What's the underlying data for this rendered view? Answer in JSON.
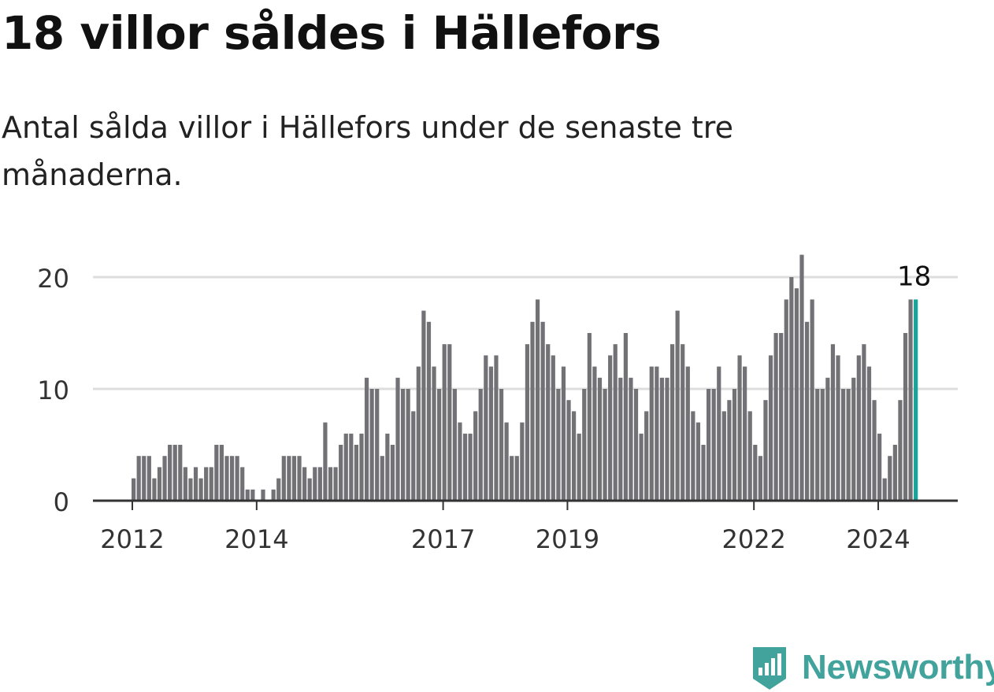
{
  "title": "18 villor såldes i Hällefors",
  "subtitle": "Antal sålda villor i Hällefors under de senaste tre månaderna.",
  "brand": {
    "name": "Newsworthy",
    "color": "#41a39b",
    "icon": "newsworthy-logo-icon"
  },
  "colors": {
    "bar": "#727176",
    "highlight": "#17a398",
    "grid": "#dddddd",
    "axis": "#333333"
  },
  "chart_data": {
    "type": "bar",
    "title": "",
    "xlabel": "",
    "ylabel": "",
    "ylim": [
      0,
      22
    ],
    "yticks": [
      0,
      10,
      20
    ],
    "grid": true,
    "x_tick_labels": [
      "2012",
      "2014",
      "2017",
      "2019",
      "2022",
      "2024"
    ],
    "highlight_label": "18",
    "series": [
      {
        "values": [
          2,
          4,
          4,
          4,
          2,
          3,
          4,
          5,
          5,
          5,
          3,
          2,
          3,
          2,
          3,
          3,
          5,
          5,
          4,
          4,
          4,
          3,
          1,
          1,
          0,
          1,
          0,
          1,
          2,
          4,
          4,
          4,
          4,
          3,
          2,
          3,
          3,
          7,
          3,
          3,
          5,
          6,
          6,
          5,
          6,
          11,
          10,
          10,
          4,
          6,
          5,
          11,
          10,
          10,
          8,
          12,
          17,
          16,
          12,
          10,
          14,
          14,
          10,
          7,
          6,
          6,
          8,
          10,
          13,
          12,
          13,
          10,
          7,
          4,
          4,
          7,
          14,
          16,
          18,
          16,
          14,
          13,
          10,
          12,
          9,
          8,
          6,
          10,
          15,
          12,
          11,
          10,
          13,
          14,
          11,
          15,
          11,
          10,
          6,
          8,
          12,
          12,
          11,
          11,
          14,
          17,
          14,
          12,
          8,
          7,
          5,
          10,
          10,
          12,
          8,
          9,
          10,
          13,
          12,
          8,
          5,
          4,
          9,
          13,
          15,
          15,
          18,
          20,
          19,
          22,
          16,
          18,
          10,
          10,
          11,
          14,
          13,
          10,
          10,
          11,
          13,
          14,
          12,
          9,
          6,
          2,
          4,
          5,
          9,
          15,
          18,
          18
        ]
      }
    ]
  }
}
